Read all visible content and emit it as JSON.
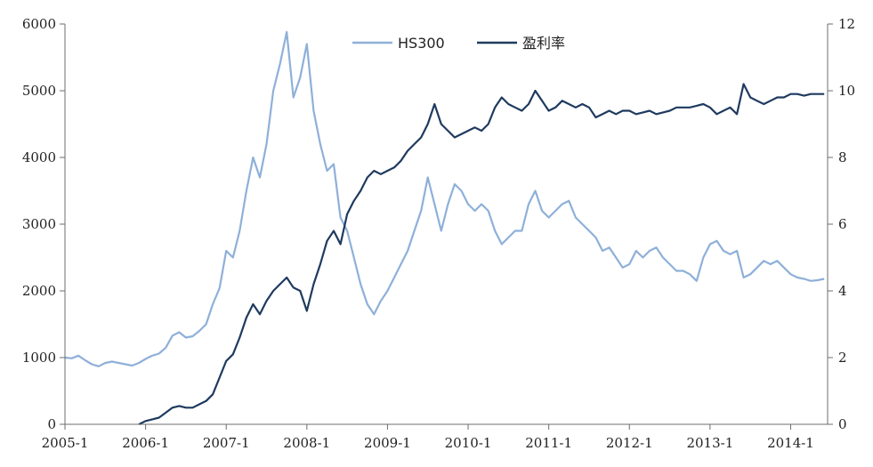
{
  "chart_data": {
    "type": "line",
    "title": "",
    "legend_position": "top-center",
    "grid": false,
    "x_axis": {
      "tick_labels": [
        "2005-1",
        "2006-1",
        "2007-1",
        "2008-1",
        "2009-1",
        "2010-1",
        "2011-1",
        "2012-1",
        "2013-1",
        "2014-1"
      ],
      "range": [
        "2005-01",
        "2014-06"
      ]
    },
    "y_left": {
      "range": [
        0,
        6000
      ],
      "tick_labels": [
        "0",
        "1000",
        "2000",
        "3000",
        "4000",
        "5000",
        "6000"
      ]
    },
    "y_right": {
      "range": [
        0,
        12
      ],
      "tick_labels": [
        "0",
        "2",
        "4",
        "6",
        "8",
        "10",
        "12"
      ]
    },
    "series": [
      {
        "name": "HS300",
        "axis": "left",
        "color": "#8eb0d9",
        "points": [
          [
            "2005-01",
            1000
          ],
          [
            "2005-02",
            990
          ],
          [
            "2005-03",
            1030
          ],
          [
            "2005-04",
            960
          ],
          [
            "2005-05",
            900
          ],
          [
            "2005-06",
            870
          ],
          [
            "2005-07",
            920
          ],
          [
            "2005-08",
            940
          ],
          [
            "2005-09",
            920
          ],
          [
            "2005-10",
            900
          ],
          [
            "2005-11",
            880
          ],
          [
            "2005-12",
            920
          ],
          [
            "2006-01",
            980
          ],
          [
            "2006-02",
            1030
          ],
          [
            "2006-03",
            1060
          ],
          [
            "2006-04",
            1150
          ],
          [
            "2006-05",
            1330
          ],
          [
            "2006-06",
            1380
          ],
          [
            "2006-07",
            1300
          ],
          [
            "2006-08",
            1320
          ],
          [
            "2006-09",
            1400
          ],
          [
            "2006-10",
            1500
          ],
          [
            "2006-11",
            1800
          ],
          [
            "2006-12",
            2040
          ],
          [
            "2007-01",
            2600
          ],
          [
            "2007-02",
            2500
          ],
          [
            "2007-03",
            2900
          ],
          [
            "2007-04",
            3500
          ],
          [
            "2007-05",
            4000
          ],
          [
            "2007-06",
            3700
          ],
          [
            "2007-07",
            4200
          ],
          [
            "2007-08",
            5000
          ],
          [
            "2007-09",
            5400
          ],
          [
            "2007-10",
            5880
          ],
          [
            "2007-11",
            4900
          ],
          [
            "2007-12",
            5200
          ],
          [
            "2008-01",
            5700
          ],
          [
            "2008-02",
            4700
          ],
          [
            "2008-03",
            4200
          ],
          [
            "2008-04",
            3800
          ],
          [
            "2008-05",
            3900
          ],
          [
            "2008-06",
            3100
          ],
          [
            "2008-07",
            2900
          ],
          [
            "2008-08",
            2500
          ],
          [
            "2008-09",
            2100
          ],
          [
            "2008-10",
            1800
          ],
          [
            "2008-11",
            1650
          ],
          [
            "2008-12",
            1850
          ],
          [
            "2009-01",
            2000
          ],
          [
            "2009-02",
            2200
          ],
          [
            "2009-03",
            2400
          ],
          [
            "2009-04",
            2600
          ],
          [
            "2009-05",
            2900
          ],
          [
            "2009-06",
            3200
          ],
          [
            "2009-07",
            3700
          ],
          [
            "2009-08",
            3300
          ],
          [
            "2009-09",
            2900
          ],
          [
            "2009-10",
            3300
          ],
          [
            "2009-11",
            3600
          ],
          [
            "2009-12",
            3500
          ],
          [
            "2010-01",
            3300
          ],
          [
            "2010-02",
            3200
          ],
          [
            "2010-03",
            3300
          ],
          [
            "2010-04",
            3200
          ],
          [
            "2010-05",
            2900
          ],
          [
            "2010-06",
            2700
          ],
          [
            "2010-07",
            2800
          ],
          [
            "2010-08",
            2900
          ],
          [
            "2010-09",
            2900
          ],
          [
            "2010-10",
            3300
          ],
          [
            "2010-11",
            3500
          ],
          [
            "2010-12",
            3200
          ],
          [
            "2011-01",
            3100
          ],
          [
            "2011-02",
            3200
          ],
          [
            "2011-03",
            3300
          ],
          [
            "2011-04",
            3350
          ],
          [
            "2011-05",
            3100
          ],
          [
            "2011-06",
            3000
          ],
          [
            "2011-07",
            2900
          ],
          [
            "2011-08",
            2800
          ],
          [
            "2011-09",
            2600
          ],
          [
            "2011-10",
            2650
          ],
          [
            "2011-11",
            2500
          ],
          [
            "2011-12",
            2350
          ],
          [
            "2012-01",
            2400
          ],
          [
            "2012-02",
            2600
          ],
          [
            "2012-03",
            2500
          ],
          [
            "2012-04",
            2600
          ],
          [
            "2012-05",
            2650
          ],
          [
            "2012-06",
            2500
          ],
          [
            "2012-07",
            2400
          ],
          [
            "2012-08",
            2300
          ],
          [
            "2012-09",
            2300
          ],
          [
            "2012-10",
            2250
          ],
          [
            "2012-11",
            2150
          ],
          [
            "2012-12",
            2500
          ],
          [
            "2013-01",
            2700
          ],
          [
            "2013-02",
            2750
          ],
          [
            "2013-03",
            2600
          ],
          [
            "2013-04",
            2550
          ],
          [
            "2013-05",
            2600
          ],
          [
            "2013-06",
            2200
          ],
          [
            "2013-07",
            2250
          ],
          [
            "2013-08",
            2350
          ],
          [
            "2013-09",
            2450
          ],
          [
            "2013-10",
            2400
          ],
          [
            "2013-11",
            2450
          ],
          [
            "2013-12",
            2350
          ],
          [
            "2014-01",
            2250
          ],
          [
            "2014-02",
            2200
          ],
          [
            "2014-03",
            2180
          ],
          [
            "2014-04",
            2150
          ],
          [
            "2014-05",
            2160
          ],
          [
            "2014-06",
            2180
          ]
        ]
      },
      {
        "name": "盈利率",
        "axis": "right",
        "color": "#1f3a5f",
        "points": [
          [
            "2005-12",
            0.0
          ],
          [
            "2006-01",
            0.1
          ],
          [
            "2006-02",
            0.15
          ],
          [
            "2006-03",
            0.2
          ],
          [
            "2006-04",
            0.35
          ],
          [
            "2006-05",
            0.5
          ],
          [
            "2006-06",
            0.55
          ],
          [
            "2006-07",
            0.5
          ],
          [
            "2006-08",
            0.5
          ],
          [
            "2006-09",
            0.6
          ],
          [
            "2006-10",
            0.7
          ],
          [
            "2006-11",
            0.9
          ],
          [
            "2006-12",
            1.4
          ],
          [
            "2007-01",
            1.9
          ],
          [
            "2007-02",
            2.1
          ],
          [
            "2007-03",
            2.6
          ],
          [
            "2007-04",
            3.2
          ],
          [
            "2007-05",
            3.6
          ],
          [
            "2007-06",
            3.3
          ],
          [
            "2007-07",
            3.7
          ],
          [
            "2007-08",
            4.0
          ],
          [
            "2007-09",
            4.2
          ],
          [
            "2007-10",
            4.4
          ],
          [
            "2007-11",
            4.1
          ],
          [
            "2007-12",
            4.0
          ],
          [
            "2008-01",
            3.4
          ],
          [
            "2008-02",
            4.2
          ],
          [
            "2008-03",
            4.8
          ],
          [
            "2008-04",
            5.5
          ],
          [
            "2008-05",
            5.8
          ],
          [
            "2008-06",
            5.4
          ],
          [
            "2008-07",
            6.3
          ],
          [
            "2008-08",
            6.7
          ],
          [
            "2008-09",
            7.0
          ],
          [
            "2008-10",
            7.4
          ],
          [
            "2008-11",
            7.6
          ],
          [
            "2008-12",
            7.5
          ],
          [
            "2009-01",
            7.6
          ],
          [
            "2009-02",
            7.7
          ],
          [
            "2009-03",
            7.9
          ],
          [
            "2009-04",
            8.2
          ],
          [
            "2009-05",
            8.4
          ],
          [
            "2009-06",
            8.6
          ],
          [
            "2009-07",
            9.0
          ],
          [
            "2009-08",
            9.6
          ],
          [
            "2009-09",
            9.0
          ],
          [
            "2009-10",
            8.8
          ],
          [
            "2009-11",
            8.6
          ],
          [
            "2009-12",
            8.7
          ],
          [
            "2010-01",
            8.8
          ],
          [
            "2010-02",
            8.9
          ],
          [
            "2010-03",
            8.8
          ],
          [
            "2010-04",
            9.0
          ],
          [
            "2010-05",
            9.5
          ],
          [
            "2010-06",
            9.8
          ],
          [
            "2010-07",
            9.6
          ],
          [
            "2010-08",
            9.5
          ],
          [
            "2010-09",
            9.4
          ],
          [
            "2010-10",
            9.6
          ],
          [
            "2010-11",
            10.0
          ],
          [
            "2010-12",
            9.7
          ],
          [
            "2011-01",
            9.4
          ],
          [
            "2011-02",
            9.5
          ],
          [
            "2011-03",
            9.7
          ],
          [
            "2011-04",
            9.6
          ],
          [
            "2011-05",
            9.5
          ],
          [
            "2011-06",
            9.6
          ],
          [
            "2011-07",
            9.5
          ],
          [
            "2011-08",
            9.2
          ],
          [
            "2011-09",
            9.3
          ],
          [
            "2011-10",
            9.4
          ],
          [
            "2011-11",
            9.3
          ],
          [
            "2011-12",
            9.4
          ],
          [
            "2012-01",
            9.4
          ],
          [
            "2012-02",
            9.3
          ],
          [
            "2012-03",
            9.35
          ],
          [
            "2012-04",
            9.4
          ],
          [
            "2012-05",
            9.3
          ],
          [
            "2012-06",
            9.35
          ],
          [
            "2012-07",
            9.4
          ],
          [
            "2012-08",
            9.5
          ],
          [
            "2012-09",
            9.5
          ],
          [
            "2012-10",
            9.5
          ],
          [
            "2012-11",
            9.55
          ],
          [
            "2012-12",
            9.6
          ],
          [
            "2013-01",
            9.5
          ],
          [
            "2013-02",
            9.3
          ],
          [
            "2013-03",
            9.4
          ],
          [
            "2013-04",
            9.5
          ],
          [
            "2013-05",
            9.3
          ],
          [
            "2013-06",
            10.2
          ],
          [
            "2013-07",
            9.8
          ],
          [
            "2013-08",
            9.7
          ],
          [
            "2013-09",
            9.6
          ],
          [
            "2013-10",
            9.7
          ],
          [
            "2013-11",
            9.8
          ],
          [
            "2013-12",
            9.8
          ],
          [
            "2014-01",
            9.9
          ],
          [
            "2014-02",
            9.9
          ],
          [
            "2014-03",
            9.85
          ],
          [
            "2014-04",
            9.9
          ],
          [
            "2014-05",
            9.9
          ],
          [
            "2014-06",
            9.9
          ]
        ]
      }
    ]
  }
}
